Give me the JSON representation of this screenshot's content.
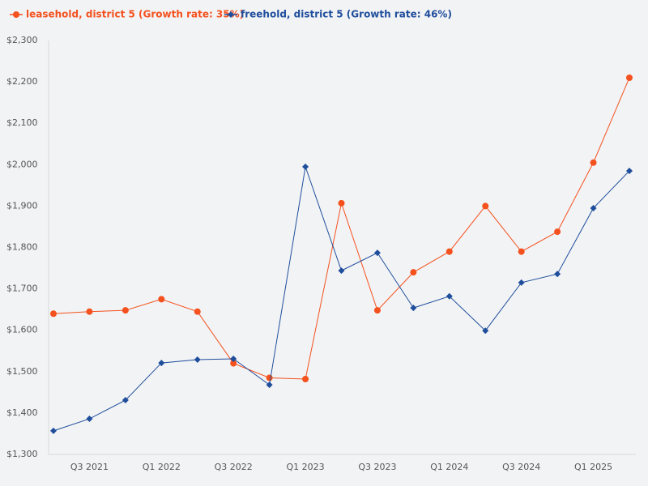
{
  "chart_data": {
    "type": "line",
    "categories": [
      null,
      "Q3 2021",
      null,
      "Q1 2022",
      null,
      "Q3 2022",
      null,
      "Q1 2023",
      null,
      "Q3 2023",
      null,
      "Q1 2024",
      null,
      "Q3 2024",
      null,
      "Q1 2025",
      null
    ],
    "series": [
      {
        "name": "leasehold, district 5 (Growth rate: 35%)",
        "color": "#f4511e",
        "marker": "circle",
        "values": [
          1640,
          1645,
          1648,
          1675,
          1645,
          1520,
          1485,
          1482,
          1907,
          1648,
          1740,
          1790,
          1900,
          1790,
          1838,
          2005,
          2210
        ]
      },
      {
        "name": "freehold, district 5 (Growth rate: 46%)",
        "color": "#1f4e9c",
        "marker": "diamond",
        "values": [
          1357,
          1386,
          1431,
          1521,
          1529,
          1531,
          1468,
          1995,
          1744,
          1787,
          1654,
          1682,
          1599,
          1715,
          1736,
          1895,
          1985
        ]
      }
    ],
    "ylim": [
      1300,
      2300
    ],
    "yticks": [
      {
        "value": 1300,
        "label": "$1,300"
      },
      {
        "value": 1400,
        "label": "$1,400"
      },
      {
        "value": 1500,
        "label": "$1,500"
      },
      {
        "value": 1600,
        "label": "$1,600"
      },
      {
        "value": 1700,
        "label": "$1,700"
      },
      {
        "value": 1800,
        "label": "$1,800"
      },
      {
        "value": 1900,
        "label": "$1,900"
      },
      {
        "value": 2000,
        "label": "$2,000"
      },
      {
        "value": 2100,
        "label": "$2,100"
      },
      {
        "value": 2200,
        "label": "$2,200"
      },
      {
        "value": 2300,
        "label": "$2,300"
      }
    ],
    "grid": false,
    "legend": "top-left"
  }
}
